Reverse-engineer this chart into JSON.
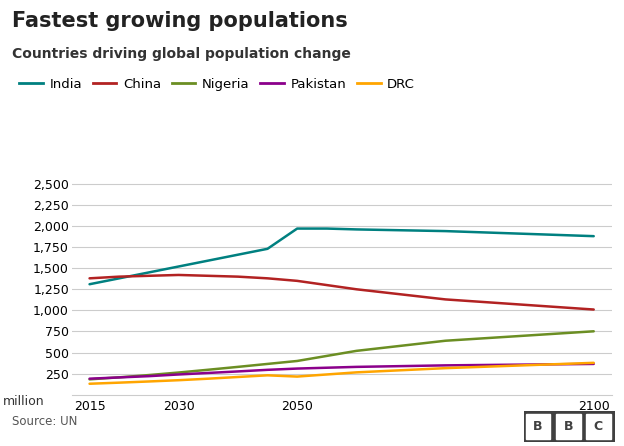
{
  "title": "Fastest growing populations",
  "subtitle": "Countries driving global population change",
  "ylabel": "million",
  "source": "Source: UN",
  "years": [
    2015,
    2020,
    2025,
    2030,
    2035,
    2040,
    2045,
    2050,
    2055,
    2060,
    2075,
    2100
  ],
  "series": {
    "India": {
      "color": "#008080",
      "values": [
        1310,
        1380,
        1450,
        1520,
        1590,
        1660,
        1730,
        1970,
        1970,
        1960,
        1940,
        1880
      ]
    },
    "China": {
      "color": "#B22222",
      "values": [
        1380,
        1400,
        1410,
        1420,
        1410,
        1400,
        1380,
        1350,
        1300,
        1250,
        1130,
        1010
      ]
    },
    "Nigeria": {
      "color": "#6B8E23",
      "values": [
        182,
        206,
        233,
        263,
        296,
        330,
        365,
        400,
        460,
        520,
        640,
        752
      ]
    },
    "Pakistan": {
      "color": "#8B008B",
      "values": [
        190,
        205,
        220,
        240,
        258,
        276,
        295,
        310,
        320,
        330,
        348,
        365
      ]
    },
    "DRC": {
      "color": "#FFA500",
      "values": [
        130,
        143,
        157,
        172,
        190,
        210,
        230,
        215,
        240,
        265,
        315,
        378
      ]
    }
  },
  "xlim": [
    2012,
    2103
  ],
  "ylim": [
    0,
    2750
  ],
  "yticks": [
    250,
    500,
    750,
    1000,
    1250,
    1500,
    1750,
    2000,
    2250,
    2500
  ],
  "xticks": [
    2015,
    2030,
    2050,
    2100
  ],
  "grid_color": "#cccccc",
  "background_color": "#ffffff",
  "title_fontsize": 15,
  "subtitle_fontsize": 10,
  "legend_fontsize": 9.5,
  "tick_fontsize": 9,
  "bbc_logo": "BBC"
}
